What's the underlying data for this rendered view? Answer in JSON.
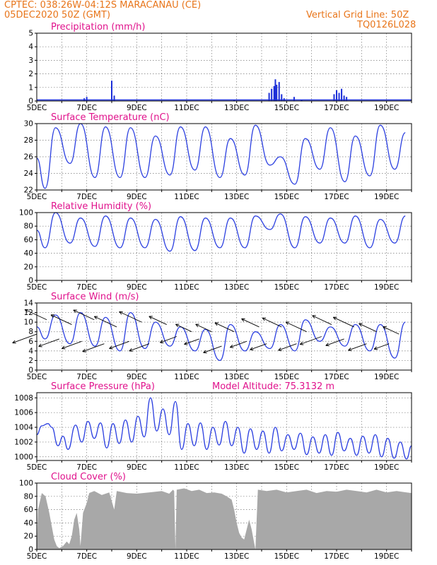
{
  "header": {
    "line1": "CPTEC:  038:26W-04:12S  MARACANAU (CE)",
    "line2": "05DEC2020 50Z (GMT)",
    "right1": "Vertical Grid Line: 50Z",
    "right2": "TQ0126L028"
  },
  "colors": {
    "header": "#e8751a",
    "title": "#e0128c",
    "line": "#2b3fe0",
    "bar": "#1c2fd8",
    "cloud": "#a8a8a8",
    "wind_arrow": "#000000"
  },
  "x_ticks": [
    "5DEC",
    "7DEC",
    "9DEC",
    "11DEC",
    "13DEC",
    "15DEC",
    "17DEC",
    "19DEC"
  ],
  "chart_data": [
    {
      "type": "bar",
      "title": "Precipitation (mm/h)",
      "x_day_range": [
        5,
        20
      ],
      "ylim": [
        0,
        5
      ],
      "yticks": [
        0,
        1,
        2,
        3,
        4,
        5
      ],
      "bars": [
        [
          6.9,
          0.2
        ],
        [
          7.0,
          0.3
        ],
        [
          8.0,
          1.5
        ],
        [
          8.1,
          0.4
        ],
        [
          14.3,
          0.6
        ],
        [
          14.4,
          0.9
        ],
        [
          14.5,
          1.1
        ],
        [
          14.55,
          1.6
        ],
        [
          14.6,
          1.2
        ],
        [
          14.7,
          1.4
        ],
        [
          14.8,
          0.5
        ],
        [
          14.9,
          0.2
        ],
        [
          15.3,
          0.3
        ],
        [
          16.9,
          0.5
        ],
        [
          17.0,
          0.8
        ],
        [
          17.1,
          0.6
        ],
        [
          17.2,
          0.9
        ],
        [
          17.3,
          0.4
        ],
        [
          17.4,
          0.3
        ],
        [
          15.6,
          0.1
        ],
        [
          12.9,
          0.1
        ]
      ]
    },
    {
      "type": "line",
      "title": "Surface Temperature (nC)",
      "x_day_range": [
        5,
        20
      ],
      "ylim": [
        22,
        30
      ],
      "yticks": [
        22,
        24,
        26,
        28,
        30
      ],
      "minima": [
        22.2,
        25.2,
        23.5,
        23.5,
        23.5,
        23.8,
        24.4,
        23.5,
        23.8,
        25.0,
        22.7,
        24.5,
        23.0,
        23.7,
        24.5
      ],
      "maxima": [
        29.5,
        30.0,
        29.6,
        29.5,
        28.5,
        29.6,
        29.6,
        28.2,
        29.8,
        26.0,
        28.2,
        29.5,
        28.5,
        29.8,
        28.9
      ]
    },
    {
      "type": "line",
      "title": "Relative Humidity (%)",
      "x_day_range": [
        5,
        20
      ],
      "ylim": [
        0,
        100
      ],
      "yticks": [
        0,
        20,
        40,
        60,
        80,
        100
      ],
      "minima": [
        48,
        55,
        50,
        48,
        48,
        43,
        44,
        48,
        48,
        75,
        48,
        55,
        55,
        48,
        55
      ],
      "maxima": [
        100,
        92,
        95,
        92,
        90,
        94,
        92,
        92,
        95,
        98,
        94,
        92,
        95,
        90,
        95
      ]
    },
    {
      "type": "line",
      "title": "Surface Wind (m/s)",
      "x_day_range": [
        5,
        20
      ],
      "ylim": [
        0,
        14
      ],
      "yticks": [
        0,
        2,
        4,
        6,
        8,
        10,
        12,
        14
      ],
      "minima": [
        6.5,
        5.5,
        5.0,
        4.0,
        4.5,
        5.0,
        4.0,
        2.0,
        4.0,
        4.5,
        4.0,
        6.0,
        5.0,
        4.0,
        2.5
      ],
      "maxima": [
        11.5,
        12.0,
        11.0,
        12.0,
        10.0,
        9.0,
        8.5,
        9.5,
        8.0,
        9.5,
        10.5,
        9.0,
        9.5,
        9.5,
        10.0
      ],
      "arrows": [
        [
          5.0,
          7.5,
          5.3
        ],
        [
          5.4,
          10.5,
          4.8
        ],
        [
          5.9,
          6.5,
          4.2
        ],
        [
          6.4,
          9.5,
          4.5
        ],
        [
          6.8,
          6.0,
          4.0
        ],
        [
          7.3,
          10.5,
          4.5
        ],
        [
          7.7,
          5.5,
          4.5
        ],
        [
          8.2,
          9.0,
          5.0
        ],
        [
          8.7,
          6.0,
          4.0
        ],
        [
          9.2,
          10.0,
          5.0
        ],
        [
          9.5,
          5.5,
          4.0
        ],
        [
          10.2,
          9.5,
          3.5
        ],
        [
          10.6,
          7.0,
          3.0
        ],
        [
          11.2,
          8.0,
          3.0
        ],
        [
          11.5,
          6.5,
          2.5
        ],
        [
          12.0,
          8.0,
          3.0
        ],
        [
          12.4,
          5.0,
          3.5
        ],
        [
          12.9,
          8.0,
          4.0
        ],
        [
          13.4,
          6.0,
          3.0
        ],
        [
          13.9,
          9.0,
          3.5
        ],
        [
          14.2,
          5.5,
          3.0
        ],
        [
          14.8,
          9.0,
          4.0
        ],
        [
          15.4,
          5.5,
          3.5
        ],
        [
          15.8,
          8.0,
          4.5
        ],
        [
          16.4,
          7.0,
          4.5
        ],
        [
          16.8,
          9.5,
          4.0
        ],
        [
          17.3,
          6.5,
          3.5
        ],
        [
          17.7,
          9.0,
          4.5
        ],
        [
          18.2,
          5.5,
          3.5
        ],
        [
          18.6,
          8.0,
          3.5
        ],
        [
          19.1,
          5.5,
          2.5
        ],
        [
          19.5,
          7.5,
          3.0
        ]
      ]
    },
    {
      "type": "line",
      "title": "Surface Pressure (hPa)",
      "annotation": "Model Altitude: 75.3132  m",
      "x_day_range": [
        5,
        20
      ],
      "ylim": [
        999.5,
        1008.7
      ],
      "yticks": [
        1000,
        1002,
        1004,
        1006,
        1008
      ],
      "points": [
        [
          5.0,
          1003.0
        ],
        [
          5.2,
          1004.2
        ],
        [
          5.45,
          1004.5
        ],
        [
          5.6,
          1004.0
        ],
        [
          5.85,
          1001.5
        ],
        [
          6.05,
          1002.8
        ],
        [
          6.25,
          1001.0
        ],
        [
          6.55,
          1004.3
        ],
        [
          6.8,
          1002.0
        ],
        [
          7.05,
          1004.8
        ],
        [
          7.3,
          1002.5
        ],
        [
          7.55,
          1004.6
        ],
        [
          7.8,
          1001.2
        ],
        [
          8.05,
          1004.5
        ],
        [
          8.3,
          1001.8
        ],
        [
          8.55,
          1005.0
        ],
        [
          8.8,
          1002.0
        ],
        [
          9.05,
          1005.5
        ],
        [
          9.3,
          1002.7
        ],
        [
          9.55,
          1008.0
        ],
        [
          9.8,
          1003.5
        ],
        [
          10.05,
          1006.5
        ],
        [
          10.3,
          1003.0
        ],
        [
          10.55,
          1007.5
        ],
        [
          10.8,
          1001.0
        ],
        [
          11.05,
          1004.5
        ],
        [
          11.3,
          1001.5
        ],
        [
          11.55,
          1004.6
        ],
        [
          11.8,
          1001.0
        ],
        [
          12.05,
          1004.0
        ],
        [
          12.3,
          1001.6
        ],
        [
          12.55,
          1004.8
        ],
        [
          12.8,
          1001.5
        ],
        [
          13.05,
          1004.0
        ],
        [
          13.3,
          1000.5
        ],
        [
          13.55,
          1003.8
        ],
        [
          13.8,
          1001.0
        ],
        [
          14.05,
          1003.5
        ],
        [
          14.3,
          1000.5
        ],
        [
          14.55,
          1004.0
        ],
        [
          14.8,
          1000.8
        ],
        [
          15.05,
          1003.0
        ],
        [
          15.3,
          1001.0
        ],
        [
          15.55,
          1003.2
        ],
        [
          15.8,
          1000.3
        ],
        [
          16.05,
          1002.7
        ],
        [
          16.3,
          1000.5
        ],
        [
          16.55,
          1003.0
        ],
        [
          16.8,
          1000.2
        ],
        [
          17.05,
          1003.3
        ],
        [
          17.3,
          1000.8
        ],
        [
          17.55,
          1002.5
        ],
        [
          17.8,
          1000.2
        ],
        [
          18.05,
          1002.8
        ],
        [
          18.3,
          1000.5
        ],
        [
          18.55,
          1003.0
        ],
        [
          18.8,
          1000.0
        ],
        [
          19.05,
          1002.5
        ],
        [
          19.3,
          999.8
        ],
        [
          19.55,
          1002.0
        ],
        [
          19.8,
          999.7
        ],
        [
          20.0,
          1001.5
        ]
      ]
    },
    {
      "type": "area",
      "title": "Cloud Cover (%)",
      "x_day_range": [
        5,
        20
      ],
      "ylim": [
        0,
        100
      ],
      "yticks": [
        0,
        20,
        40,
        60,
        80,
        100
      ],
      "points": [
        [
          5.0,
          0
        ],
        [
          5.05,
          60
        ],
        [
          5.2,
          85
        ],
        [
          5.35,
          80
        ],
        [
          5.5,
          55
        ],
        [
          5.6,
          35
        ],
        [
          5.7,
          15
        ],
        [
          5.8,
          5
        ],
        [
          5.9,
          2
        ],
        [
          6.05,
          5
        ],
        [
          6.2,
          12
        ],
        [
          6.3,
          8
        ],
        [
          6.4,
          20
        ],
        [
          6.5,
          45
        ],
        [
          6.6,
          55
        ],
        [
          6.7,
          30
        ],
        [
          6.75,
          5
        ],
        [
          6.85,
          55
        ],
        [
          7.0,
          70
        ],
        [
          7.1,
          85
        ],
        [
          7.3,
          88
        ],
        [
          7.6,
          82
        ],
        [
          7.9,
          86
        ],
        [
          8.1,
          60
        ],
        [
          8.2,
          88
        ],
        [
          8.6,
          85
        ],
        [
          9.0,
          84
        ],
        [
          9.5,
          86
        ],
        [
          10.0,
          88
        ],
        [
          10.3,
          84
        ],
        [
          10.45,
          90
        ],
        [
          10.5,
          88
        ],
        [
          10.55,
          0
        ],
        [
          10.6,
          90
        ],
        [
          10.9,
          92
        ],
        [
          11.2,
          88
        ],
        [
          11.5,
          90
        ],
        [
          11.8,
          85
        ],
        [
          12.1,
          86
        ],
        [
          12.4,
          84
        ],
        [
          12.6,
          80
        ],
        [
          12.8,
          75
        ],
        [
          12.9,
          60
        ],
        [
          13.0,
          40
        ],
        [
          13.1,
          25
        ],
        [
          13.2,
          18
        ],
        [
          13.3,
          15
        ],
        [
          13.4,
          30
        ],
        [
          13.5,
          45
        ],
        [
          13.6,
          30
        ],
        [
          13.7,
          10
        ],
        [
          13.75,
          0
        ],
        [
          13.85,
          90
        ],
        [
          14.2,
          88
        ],
        [
          14.6,
          90
        ],
        [
          15.0,
          86
        ],
        [
          15.4,
          88
        ],
        [
          15.8,
          90
        ],
        [
          16.2,
          85
        ],
        [
          16.6,
          88
        ],
        [
          17.0,
          87
        ],
        [
          17.4,
          90
        ],
        [
          17.8,
          88
        ],
        [
          18.2,
          86
        ],
        [
          18.6,
          90
        ],
        [
          19.0,
          86
        ],
        [
          19.4,
          88
        ],
        [
          19.8,
          86
        ],
        [
          20.0,
          85
        ]
      ]
    }
  ]
}
